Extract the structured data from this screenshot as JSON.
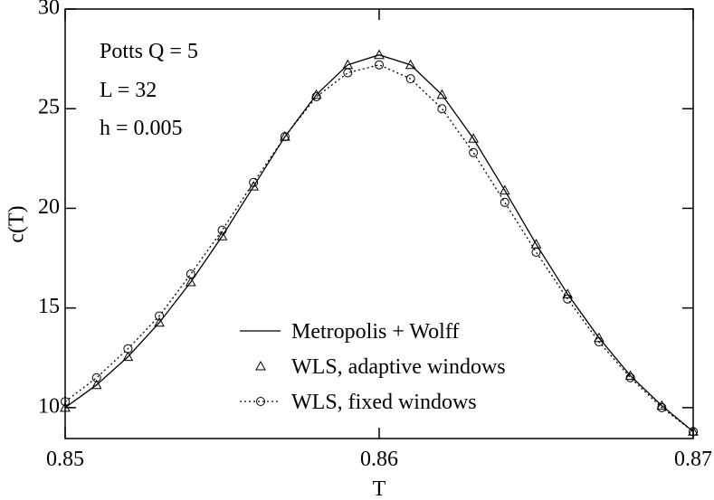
{
  "chart_data": {
    "type": "line",
    "xlabel": "T",
    "ylabel": "c(T)",
    "annotations": [
      "Potts  Q = 5",
      "L = 32",
      "h = 0.005"
    ],
    "x": [
      0.85,
      0.851,
      0.852,
      0.853,
      0.854,
      0.855,
      0.856,
      0.857,
      0.858,
      0.859,
      0.86,
      0.861,
      0.862,
      0.863,
      0.864,
      0.865,
      0.866,
      0.867,
      0.868,
      0.869,
      0.87
    ],
    "series": [
      {
        "name": "Metropolis + Wolff",
        "color": "#000000",
        "line": "solid",
        "marker": "none",
        "values": [
          10.0,
          11.14,
          12.55,
          14.27,
          16.3,
          18.6,
          21.1,
          23.6,
          25.7,
          27.2,
          27.7,
          27.2,
          25.7,
          23.5,
          20.9,
          18.2,
          15.7,
          13.5,
          11.6,
          10.1,
          8.8
        ]
      },
      {
        "name": "WLS, adaptive windows",
        "color": "#000000",
        "line": "none",
        "marker": "triangle",
        "values": [
          10.0,
          11.14,
          12.55,
          14.27,
          16.3,
          18.6,
          21.1,
          23.6,
          25.7,
          27.2,
          27.7,
          27.2,
          25.7,
          23.5,
          20.9,
          18.2,
          15.7,
          13.5,
          11.6,
          10.1,
          8.8
        ]
      },
      {
        "name": "WLS, fixed windows",
        "color": "#000000",
        "line": "dotted",
        "marker": "circle",
        "values": [
          10.3,
          11.5,
          12.95,
          14.6,
          16.7,
          18.9,
          21.3,
          23.6,
          25.6,
          26.8,
          27.2,
          26.5,
          25.0,
          22.8,
          20.3,
          17.8,
          15.45,
          13.3,
          11.5,
          10.0,
          8.8
        ]
      }
    ],
    "xlim": [
      0.85,
      0.87
    ],
    "xticks": [
      0.85,
      0.86,
      0.87
    ],
    "ylim": [
      8.45,
      30
    ],
    "yticks": [
      10,
      15,
      20,
      25,
      30
    ],
    "grid": false
  }
}
